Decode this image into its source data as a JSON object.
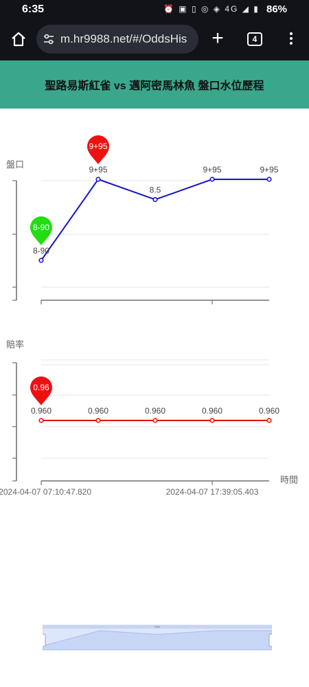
{
  "status_bar": {
    "time": "6:35",
    "icons": [
      "alarm-icon",
      "nfc-icon",
      "vibrate-icon",
      "hotspot-icon",
      "volte-icon",
      "signal-4g-icon",
      "signal-icon",
      "battery-icon"
    ],
    "network": "4G",
    "battery": "86%"
  },
  "browser": {
    "url": "m.hr9988.net/#/OddsHis",
    "tab_count": "4"
  },
  "page": {
    "title": "聖路易斯紅雀 vs 邁阿密馬林魚 盤口水位歷程"
  },
  "chart_data": [
    {
      "type": "line",
      "ylabel": "盤口",
      "series": [
        {
          "color": "#1515cc",
          "labels": [
            "8-90",
            "9+95",
            "8.5",
            "9+95",
            "9+95"
          ],
          "values": [
            1,
            3,
            2.5,
            3,
            3
          ]
        }
      ],
      "markers": [
        {
          "text": "8-90",
          "point_index": 0,
          "color": "#22dd11"
        },
        {
          "text": "9+95",
          "point_index": 1,
          "color": "#ee1111"
        }
      ]
    },
    {
      "type": "line",
      "ylabel": "賠率",
      "xlabel": "時間",
      "x_ticks": [
        "2024-04-07 07:10:47.820",
        "2024-04-07 17:39:05.403"
      ],
      "series": [
        {
          "color": "#dd1111",
          "labels": [
            "0.960",
            "0.960",
            "0.960",
            "0.960",
            "0.960"
          ],
          "values": [
            0.96,
            0.96,
            0.96,
            0.96,
            0.96
          ]
        }
      ],
      "markers": [
        {
          "text": "0.96",
          "point_index": 0,
          "color": "#ee1111"
        }
      ]
    }
  ]
}
